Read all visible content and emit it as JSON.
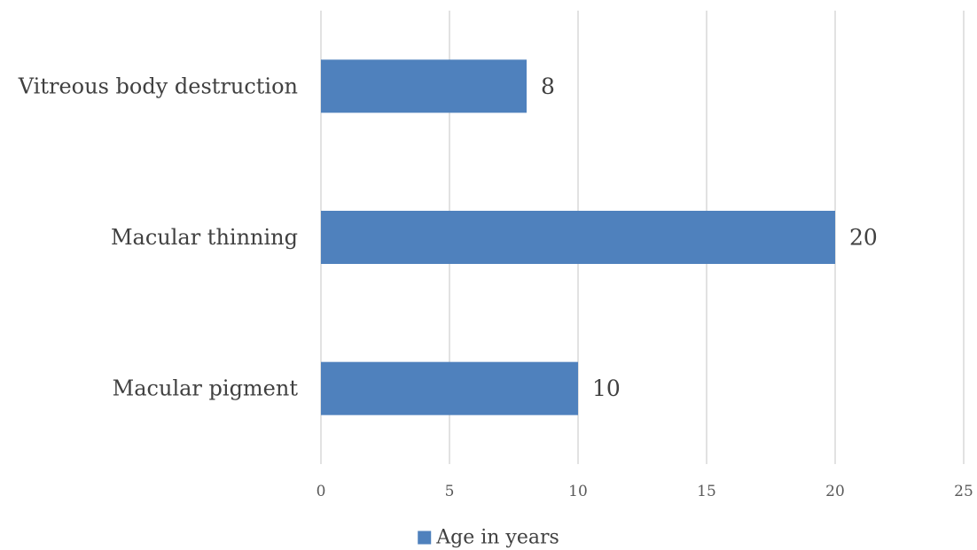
{
  "chart_data": {
    "type": "bar",
    "orientation": "horizontal",
    "categories": [
      "Vitreous body destruction",
      "Macular thinning",
      "Macular pigment"
    ],
    "series": [
      {
        "name": "Age in years",
        "values": [
          8,
          20,
          10
        ]
      }
    ],
    "xlim": [
      0,
      25
    ],
    "xticks": [
      0,
      5,
      10,
      15,
      20,
      25
    ],
    "xlabel": "",
    "ylabel": "",
    "title": "",
    "grid": true,
    "legend_position": "bottom",
    "data_labels": true,
    "colors": {
      "bar": "#4f81bd",
      "grid": "#d9d9d9"
    }
  }
}
